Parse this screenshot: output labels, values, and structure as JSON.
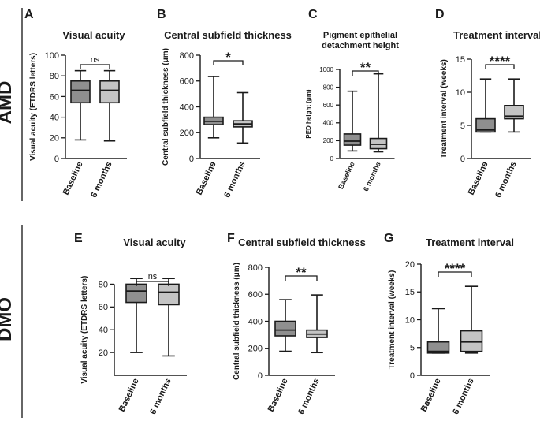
{
  "groups": {
    "top": "AMD",
    "bottom": "DMO"
  },
  "colors": {
    "baseline_fill": "#8f8f8f",
    "followup_fill": "#c4c4c4",
    "stroke": "#1a1a1a",
    "group_label": "#555555"
  },
  "chart_data": [
    {
      "type": "boxplot",
      "letter": "A",
      "group": "AMD",
      "title": "Visual acuity",
      "ylabel": "Visual acuity (ETDRS letters)",
      "categories": [
        "Baseline",
        "6 months"
      ],
      "ylim": [
        0,
        100
      ],
      "yticks": [
        0,
        20,
        40,
        60,
        80,
        100
      ],
      "boxes": [
        {
          "min": 18,
          "q1": 54,
          "median": 66,
          "q3": 75,
          "max": 85
        },
        {
          "min": 17,
          "q1": 54,
          "median": 66,
          "q3": 75,
          "max": 85
        }
      ],
      "significance": "ns"
    },
    {
      "type": "boxplot",
      "letter": "B",
      "group": "AMD",
      "title": "Central subfield thickness",
      "ylabel": "Central subfield thickness (μm)",
      "categories": [
        "Baseline",
        "6 months"
      ],
      "ylim": [
        0,
        800
      ],
      "yticks": [
        0,
        200,
        400,
        600,
        800
      ],
      "boxes": [
        {
          "min": 160,
          "q1": 262,
          "median": 288,
          "q3": 320,
          "max": 635
        },
        {
          "min": 120,
          "q1": 245,
          "median": 268,
          "q3": 292,
          "max": 510
        }
      ],
      "significance": "*"
    },
    {
      "type": "boxplot",
      "letter": "C",
      "group": "AMD",
      "title": "Pigment epithelial detachment height",
      "ylabel": "PED height (μm)",
      "categories": [
        "Baseline",
        "6 months"
      ],
      "ylim": [
        0,
        1000
      ],
      "yticks": [
        0,
        200,
        400,
        600,
        800,
        1000
      ],
      "boxes": [
        {
          "min": 85,
          "q1": 150,
          "median": 195,
          "q3": 275,
          "max": 755
        },
        {
          "min": 75,
          "q1": 110,
          "median": 160,
          "q3": 225,
          "max": 950
        }
      ],
      "significance": "**"
    },
    {
      "type": "boxplot",
      "letter": "D",
      "group": "AMD",
      "title": "Treatment interval",
      "ylabel": "Treatment interval (weeks)",
      "categories": [
        "Baseline",
        "6 months"
      ],
      "ylim": [
        0,
        15
      ],
      "yticks": [
        0,
        5,
        10,
        15
      ],
      "boxes": [
        {
          "min": 4,
          "q1": 4,
          "median": 4.3,
          "q3": 6,
          "max": 12
        },
        {
          "min": 4,
          "q1": 6,
          "median": 6.4,
          "q3": 8,
          "max": 12
        }
      ],
      "significance": "****"
    },
    {
      "type": "boxplot",
      "letter": "E",
      "group": "DMO",
      "title": "Visual acuity",
      "ylabel": "Visual acuity (ETDRS letters)",
      "categories": [
        "Baseline",
        "6 months"
      ],
      "ylim": [
        0,
        90
      ],
      "yticks": [
        20,
        40,
        60,
        80
      ],
      "boxes": [
        {
          "min": 20,
          "q1": 64,
          "median": 74,
          "q3": 80,
          "max": 85
        },
        {
          "min": 17,
          "q1": 62,
          "median": 73,
          "q3": 80,
          "max": 85
        }
      ],
      "significance": "ns"
    },
    {
      "type": "boxplot",
      "letter": "F",
      "group": "DMO",
      "title": "Central subfield thickness",
      "ylabel": "Central subfield thickness (μm)",
      "categories": [
        "Baseline",
        "6 months"
      ],
      "ylim": [
        0,
        800
      ],
      "yticks": [
        0,
        200,
        400,
        600,
        800
      ],
      "boxes": [
        {
          "min": 178,
          "q1": 292,
          "median": 335,
          "q3": 400,
          "max": 560
        },
        {
          "min": 168,
          "q1": 280,
          "median": 305,
          "q3": 335,
          "max": 595
        }
      ],
      "significance": "**"
    },
    {
      "type": "boxplot",
      "letter": "G",
      "group": "DMO",
      "title": "Treatment interval",
      "ylabel": "Treatment interval (weeks)",
      "categories": [
        "Baseline",
        "6 months"
      ],
      "ylim": [
        0,
        20
      ],
      "yticks": [
        0,
        5,
        10,
        15,
        20
      ],
      "boxes": [
        {
          "min": 4,
          "q1": 4,
          "median": 4.3,
          "q3": 6,
          "max": 12
        },
        {
          "min": 4,
          "q1": 4.3,
          "median": 6,
          "q3": 8,
          "max": 16
        }
      ],
      "significance": "****"
    }
  ]
}
